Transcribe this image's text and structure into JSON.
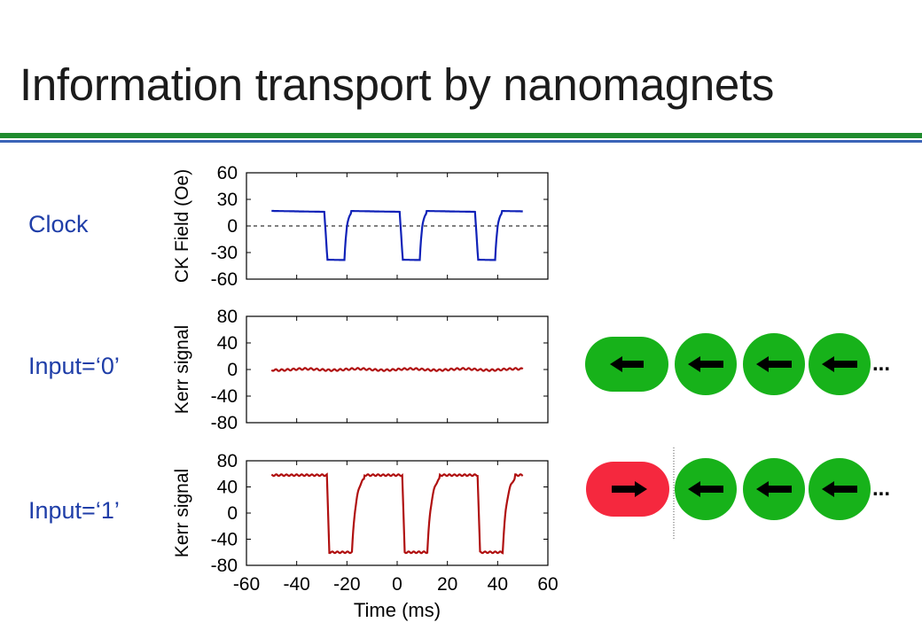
{
  "title": "Information transport by nanomagnets",
  "labels": {
    "clock": "Clock",
    "input0": "Input=‘0’",
    "input1": "Input=‘1’"
  },
  "colors": {
    "green": "#1f8b2e",
    "blue": "#3b64b8",
    "label": "#1f3ea8",
    "clock_trace": "#1022b8",
    "kerr_trace": "#b01010",
    "magnet_green": "#17b21a",
    "magnet_red": "#f5283e"
  },
  "chart_data": [
    {
      "type": "line",
      "ylabel": "CK Field (Oe)",
      "yticks": [
        "60",
        "30",
        "0",
        "-30",
        "-60"
      ],
      "ylim": [
        -60,
        60
      ],
      "xlim": [
        -60,
        60
      ],
      "zero_dashed_line": true,
      "series": [
        {
          "values_description_omitted": true
        }
      ]
    },
    {
      "type": "line",
      "ylabel": "Kerr signal",
      "yticks": [
        "80",
        "40",
        "0",
        "-40",
        "-80"
      ],
      "ylim": [
        -80,
        80
      ],
      "xlim": [
        -60,
        60
      ]
    },
    {
      "type": "line",
      "ylabel": "Kerr signal",
      "xlabel": "Time (ms)",
      "yticks": [
        "80",
        "40",
        "0",
        "-40",
        "-80"
      ],
      "xticks": [
        "-60",
        "-40",
        "-20",
        "0",
        "20",
        "40",
        "60"
      ],
      "ylim": [
        -80,
        80
      ],
      "xlim": [
        -60,
        60
      ]
    }
  ],
  "clock_signal": {
    "high": 17,
    "low": -37,
    "low_intervals": [
      [
        -29,
        -21
      ],
      [
        1,
        9
      ],
      [
        31,
        39
      ]
    ],
    "t_start": -50,
    "t_end": 50
  },
  "kerr_input1": {
    "high": 58,
    "low": -60,
    "low_intervals": [
      [
        -28,
        -18
      ],
      [
        2,
        12
      ],
      [
        32,
        42
      ]
    ],
    "t_start": -50,
    "t_end": 50
  },
  "kerr_input0": {
    "level": 0,
    "t_start": -50,
    "t_end": 50
  },
  "magnet_rows": {
    "input0": {
      "first": "left",
      "rest": [
        "left",
        "left",
        "left"
      ],
      "ellipsis": "..."
    },
    "input1": {
      "first": "right",
      "rest": [
        "left",
        "left",
        "left"
      ],
      "ellipsis": "..."
    }
  }
}
